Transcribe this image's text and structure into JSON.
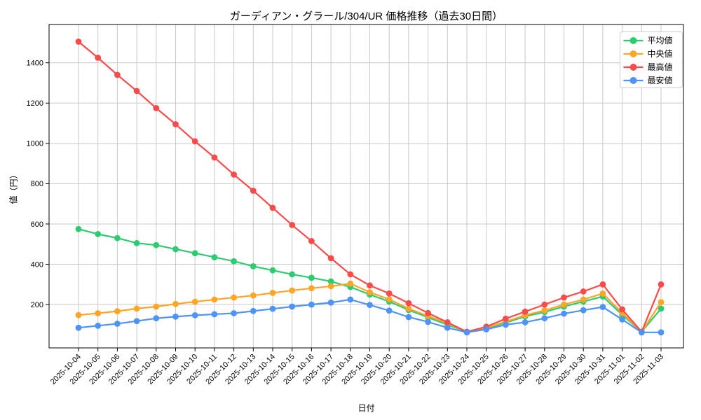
{
  "chart_data": {
    "type": "line",
    "title": "ガーディアン・グラール/304/UR 価格推移（過去30日間）",
    "xlabel": "日付",
    "ylabel": "値（円）",
    "grid": true,
    "legend_position": "upper right",
    "ylim": [
      -15,
      1590
    ],
    "yticks": [
      200,
      400,
      600,
      800,
      1000,
      1200,
      1400
    ],
    "x": [
      "2025-10-04",
      "2025-10-05",
      "2025-10-06",
      "2025-10-07",
      "2025-10-08",
      "2025-10-09",
      "2025-10-10",
      "2025-10-11",
      "2025-10-12",
      "2025-10-13",
      "2025-10-14",
      "2025-10-15",
      "2025-10-16",
      "2025-10-17",
      "2025-10-18",
      "2025-10-19",
      "2025-10-20",
      "2025-10-21",
      "2025-10-22",
      "2025-10-23",
      "2025-10-24",
      "2025-10-25",
      "2025-10-26",
      "2025-10-27",
      "2025-10-28",
      "2025-10-29",
      "2025-10-30",
      "2025-10-31",
      "2025-11-01",
      "2025-11-02",
      "2025-11-03"
    ],
    "series": [
      {
        "id": "avg",
        "name": "平均値",
        "color": "#2ecc71",
        "values": [
          575,
          550,
          530,
          505,
          495,
          475,
          455,
          435,
          415,
          390,
          370,
          350,
          333,
          315,
          287,
          250,
          215,
          173,
          136,
          100,
          65,
          82,
          110,
          141,
          163,
          190,
          215,
          240,
          149,
          65,
          180
        ]
      },
      {
        "id": "median",
        "name": "中央値",
        "color": "#ffa528",
        "values": [
          148,
          157,
          167,
          180,
          190,
          203,
          214,
          225,
          235,
          245,
          258,
          270,
          281,
          291,
          304,
          261,
          226,
          180,
          143,
          108,
          65,
          85,
          115,
          147,
          171,
          200,
          225,
          255,
          158,
          65,
          212
        ]
      },
      {
        "id": "max",
        "name": "最高値",
        "color": "#fa4b4b",
        "values": [
          1505,
          1425,
          1340,
          1260,
          1175,
          1095,
          1010,
          930,
          845,
          765,
          680,
          595,
          515,
          430,
          350,
          295,
          255,
          207,
          158,
          112,
          65,
          90,
          130,
          165,
          200,
          235,
          265,
          300,
          176,
          65,
          300
        ]
      },
      {
        "id": "min",
        "name": "最安値",
        "color": "#4d94f5",
        "values": [
          85,
          95,
          105,
          118,
          132,
          140,
          147,
          152,
          157,
          168,
          179,
          190,
          200,
          210,
          225,
          198,
          170,
          138,
          114,
          85,
          62,
          77,
          100,
          112,
          132,
          155,
          172,
          188,
          126,
          62,
          62
        ]
      }
    ],
    "colors": {
      "grid": "#c9c9c9",
      "frame": "#000000",
      "background": "#ffffff",
      "legend_border": "#cccccc"
    }
  }
}
